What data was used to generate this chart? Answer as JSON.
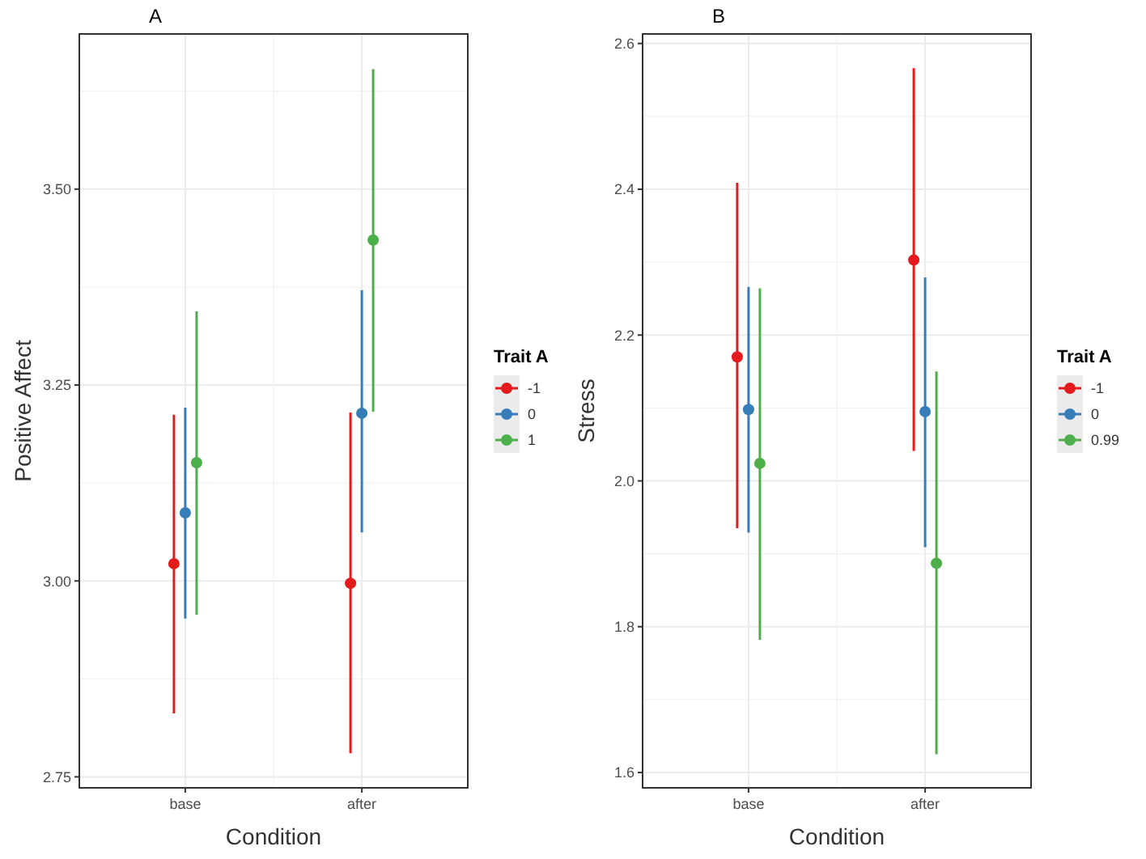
{
  "chart_data": [
    {
      "type": "scatter",
      "title": "A",
      "xlabel": "Condition",
      "ylabel": "Positive Affect",
      "legend_title": "Trait A",
      "categories": [
        "base",
        "after"
      ],
      "ylim": [
        2.736,
        3.698
      ],
      "yticks": [
        {
          "value": 2.75,
          "label": "2.75"
        },
        {
          "value": 3,
          "label": "3.00"
        },
        {
          "value": 3.25,
          "label": "3.25"
        },
        {
          "value": 3.5,
          "label": "3.50"
        }
      ],
      "grid": true,
      "legend": "right",
      "marker": "circle",
      "series": [
        {
          "name": "-1",
          "color": "#e41a1c",
          "values": [
            3.022,
            2.997
          ],
          "errors": [
            [
              2.831,
              3.212
            ],
            [
              2.78,
              3.215
            ]
          ]
        },
        {
          "name": "0",
          "color": "#377eb8",
          "values": [
            3.087,
            3.214
          ],
          "errors": [
            [
              2.952,
              3.221
            ],
            [
              3.062,
              3.371
            ]
          ]
        },
        {
          "name": "1",
          "color": "#4daf4a",
          "values": [
            3.151,
            3.435
          ],
          "errors": [
            [
              2.957,
              3.344
            ],
            [
              3.216,
              3.653
            ]
          ]
        }
      ]
    },
    {
      "type": "scatter",
      "title": "B",
      "xlabel": "Condition",
      "ylabel": "Stress",
      "legend_title": "Trait A",
      "categories": [
        "base",
        "after"
      ],
      "ylim": [
        1.579,
        2.613
      ],
      "yticks": [
        {
          "value": 1.6,
          "label": "1.6"
        },
        {
          "value": 1.8,
          "label": "1.8"
        },
        {
          "value": 2,
          "label": "2.0"
        },
        {
          "value": 2.2,
          "label": "2.2"
        },
        {
          "value": 2.4,
          "label": "2.4"
        },
        {
          "value": 2.6,
          "label": "2.6"
        }
      ],
      "grid": true,
      "legend": "right",
      "marker": "circle",
      "series": [
        {
          "name": "-1",
          "color": "#e41a1c",
          "values": [
            2.17,
            2.303
          ],
          "errors": [
            [
              1.935,
              2.409
            ],
            [
              2.041,
              2.566
            ]
          ]
        },
        {
          "name": "0",
          "color": "#377eb8",
          "values": [
            2.098,
            2.095
          ],
          "errors": [
            [
              1.929,
              2.266
            ],
            [
              1.909,
              2.279
            ]
          ]
        },
        {
          "name": "0.99",
          "color": "#4daf4a",
          "values": [
            2.024,
            1.887
          ],
          "errors": [
            [
              1.782,
              2.264
            ],
            [
              1.625,
              2.15
            ]
          ]
        }
      ]
    }
  ]
}
